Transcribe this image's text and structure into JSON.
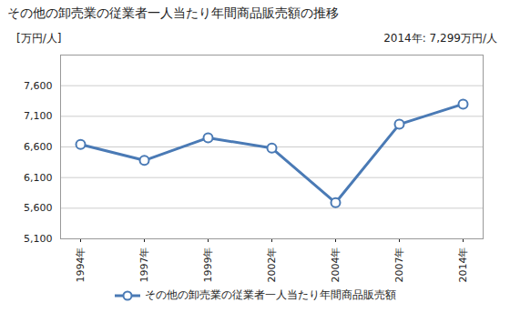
{
  "chart_data": {
    "type": "line",
    "title": "その他の卸売業の従業者一人当たり年間商品販売額の推移",
    "y_label": "[万円/人]",
    "annotation": "2014年: 7,299万円/人",
    "categories": [
      "1994年",
      "1997年",
      "1999年",
      "2002年",
      "2004年",
      "2007年",
      "2014年"
    ],
    "series": [
      {
        "name": "その他の卸売業の従業者一人当たり年間商品販売額",
        "color": "#4a7ab5",
        "marker": "circle",
        "values": [
          6640,
          6380,
          6750,
          6580,
          5690,
          6970,
          7299
        ]
      }
    ],
    "ylim": [
      5100,
      8100
    ],
    "yticks": [
      {
        "value": 5100,
        "label": "5,100"
      },
      {
        "value": 5600,
        "label": "5,600"
      },
      {
        "value": 6100,
        "label": "6,100"
      },
      {
        "value": 6600,
        "label": "6,600"
      },
      {
        "value": 7100,
        "label": "7,100"
      },
      {
        "value": 7600,
        "label": "7,600"
      }
    ],
    "grid": true,
    "legend": "bottom"
  }
}
